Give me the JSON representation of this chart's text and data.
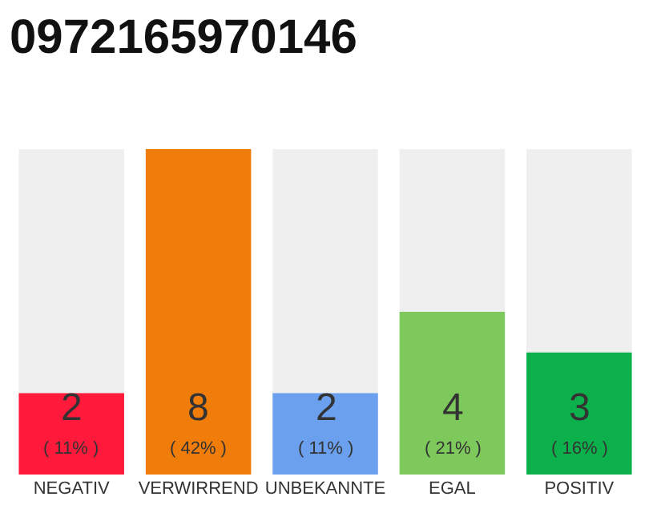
{
  "chart_data": {
    "type": "bar",
    "title": "0972165970146",
    "categories": [
      "NEGATIV",
      "VERWIRREND",
      "UNBEKANNTE",
      "EGAL",
      "POSITIV"
    ],
    "values": [
      2,
      8,
      2,
      4,
      3
    ],
    "colors": [
      "#ff1a3c",
      "#f07d0a",
      "#6aa0ee",
      "#7ec95c",
      "#0db14b"
    ],
    "value_labels": [
      "2\n( 11% )",
      "8\n( 42% )",
      "2\n( 11% )",
      "4\n( 21% )",
      "3\n( 16% )"
    ],
    "ylim": [
      0,
      8
    ],
    "tick_labels": "x",
    "grid": false,
    "legend": false
  }
}
